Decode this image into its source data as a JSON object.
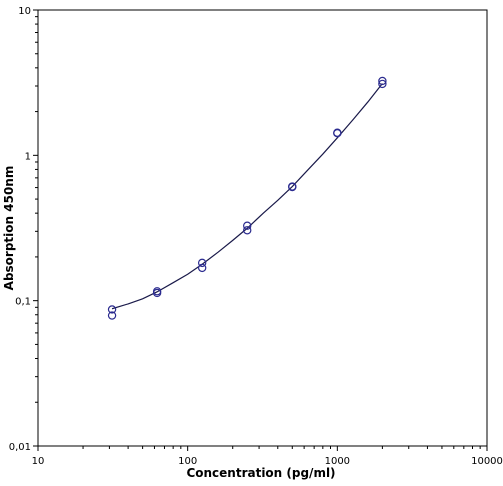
{
  "chart_data": {
    "type": "scatter",
    "title": "",
    "xlabel": "Concentration (pg/ml)",
    "ylabel": "Absorption 450nm",
    "xscale": "log",
    "yscale": "log",
    "xlim": [
      10,
      10000
    ],
    "ylim": [
      0.01,
      10
    ],
    "x_ticks": [
      {
        "value": 10,
        "label": "10"
      },
      {
        "value": 100,
        "label": "100"
      },
      {
        "value": 1000,
        "label": "1000"
      },
      {
        "value": 10000,
        "label": "10000"
      }
    ],
    "y_ticks": [
      {
        "value": 0.01,
        "label": "0,01"
      },
      {
        "value": 0.1,
        "label": "0,1"
      },
      {
        "value": 1,
        "label": "1"
      },
      {
        "value": 10,
        "label": "10"
      }
    ],
    "grid": false,
    "legend": "none",
    "colors": {
      "marker": "#2b2b8f",
      "curve": "#1a1a4a",
      "axis": "#000000"
    },
    "series": [
      {
        "x": [
          31.25,
          31.25,
          62.5,
          62.5,
          125,
          125,
          250,
          250,
          500,
          500,
          1000,
          1000,
          2000,
          2000
        ],
        "y": [
          0.087,
          0.079,
          0.116,
          0.113,
          0.182,
          0.168,
          0.328,
          0.305,
          0.61,
          0.605,
          1.43,
          1.42,
          3.25,
          3.1
        ]
      }
    ],
    "fit_curve": {
      "x": [
        31.25,
        40,
        50,
        62.5,
        80,
        100,
        125,
        160,
        200,
        250,
        320,
        400,
        500,
        640,
        800,
        1000,
        1280,
        1600,
        2000
      ],
      "y": [
        0.088,
        0.095,
        0.103,
        0.115,
        0.133,
        0.152,
        0.178,
        0.216,
        0.26,
        0.315,
        0.4,
        0.49,
        0.61,
        0.8,
        1.02,
        1.32,
        1.77,
        2.33,
        3.12
      ]
    }
  }
}
